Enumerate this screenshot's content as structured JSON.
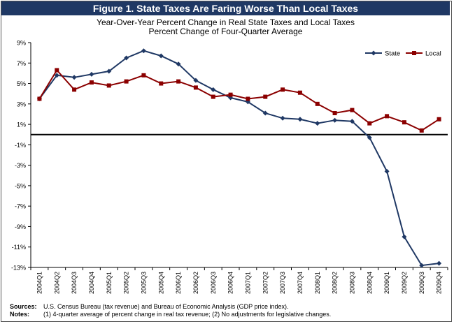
{
  "header": {
    "title": "Figure 1. State Taxes Are Faring Worse Than Local Taxes",
    "subtitle_line1": "Year-Over-Year Percent Change in Real State Taxes and Local Taxes",
    "subtitle_line2": "Percent Change of Four-Quarter Average"
  },
  "footer": {
    "sources_label": "Sources:",
    "sources_text": "U.S. Census Bureau (tax revenue) and Bureau of Economic Analysis (GDP price index).",
    "notes_label": "Notes:",
    "notes_text": "(1) 4-quarter average of percent change in real tax revenue; (2) No adjustments for legislative changes."
  },
  "chart_data": {
    "type": "line",
    "categories": [
      "2004Q1",
      "2004Q2",
      "2004Q3",
      "2004Q4",
      "2005Q1",
      "2005Q2",
      "2005Q3",
      "2005Q4",
      "2006Q1",
      "2006Q2",
      "2006Q3",
      "2006Q4",
      "2007Q1",
      "2007Q2",
      "2007Q3",
      "2007Q4",
      "2008Q1",
      "2008Q2",
      "2008Q3",
      "2008Q4",
      "2009Q1",
      "2009Q2",
      "2009Q3",
      "2009Q4"
    ],
    "series": [
      {
        "name": "State",
        "color": "#1f3864",
        "marker": "diamond",
        "values": [
          3.5,
          5.8,
          5.6,
          5.9,
          6.2,
          7.5,
          8.2,
          7.7,
          6.9,
          5.3,
          4.4,
          3.6,
          3.2,
          2.1,
          1.6,
          1.5,
          1.1,
          1.4,
          1.3,
          -0.3,
          -3.6,
          -10.0,
          -12.8,
          -12.6
        ]
      },
      {
        "name": "Local",
        "color": "#8b0000",
        "marker": "square",
        "values": [
          3.5,
          6.3,
          4.4,
          5.1,
          4.8,
          5.2,
          5.8,
          5.0,
          5.2,
          4.6,
          3.7,
          3.9,
          3.5,
          3.7,
          4.4,
          4.1,
          3.0,
          2.1,
          2.4,
          1.1,
          1.8,
          1.2,
          0.4,
          1.5
        ]
      }
    ],
    "yticks": [
      "9%",
      "7%",
      "5%",
      "3%",
      "1%",
      "-1%",
      "-3%",
      "-5%",
      "-7%",
      "-9%",
      "-11%",
      "-13%"
    ],
    "ylim": [
      -13,
      9
    ],
    "grid": false,
    "legend": "top-right"
  }
}
